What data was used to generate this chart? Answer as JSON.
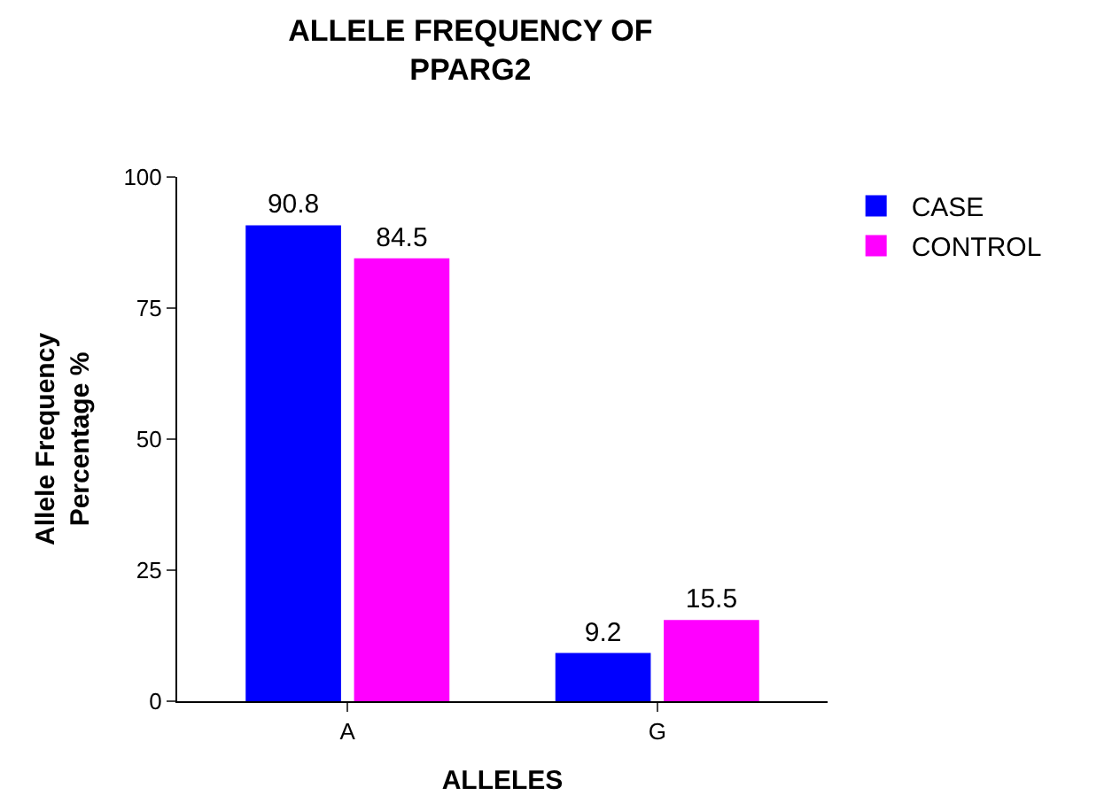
{
  "chart_data": {
    "type": "bar",
    "title": "ALLELE FREQUENCY OF\nPPARG2",
    "xlabel": "ALLELES",
    "ylabel": "Allele Frequency\nPercentage %",
    "categories": [
      "A",
      "G"
    ],
    "series": [
      {
        "name": "CASE",
        "color": "#0000ff",
        "values": [
          90.8,
          9.2
        ]
      },
      {
        "name": "CONTROL",
        "color": "#ff00ff",
        "values": [
          84.5,
          15.5
        ]
      }
    ],
    "ylim": [
      0,
      100
    ],
    "yticks": [
      0,
      25,
      50,
      75,
      100
    ],
    "legend": "top right",
    "data_labels": true
  }
}
